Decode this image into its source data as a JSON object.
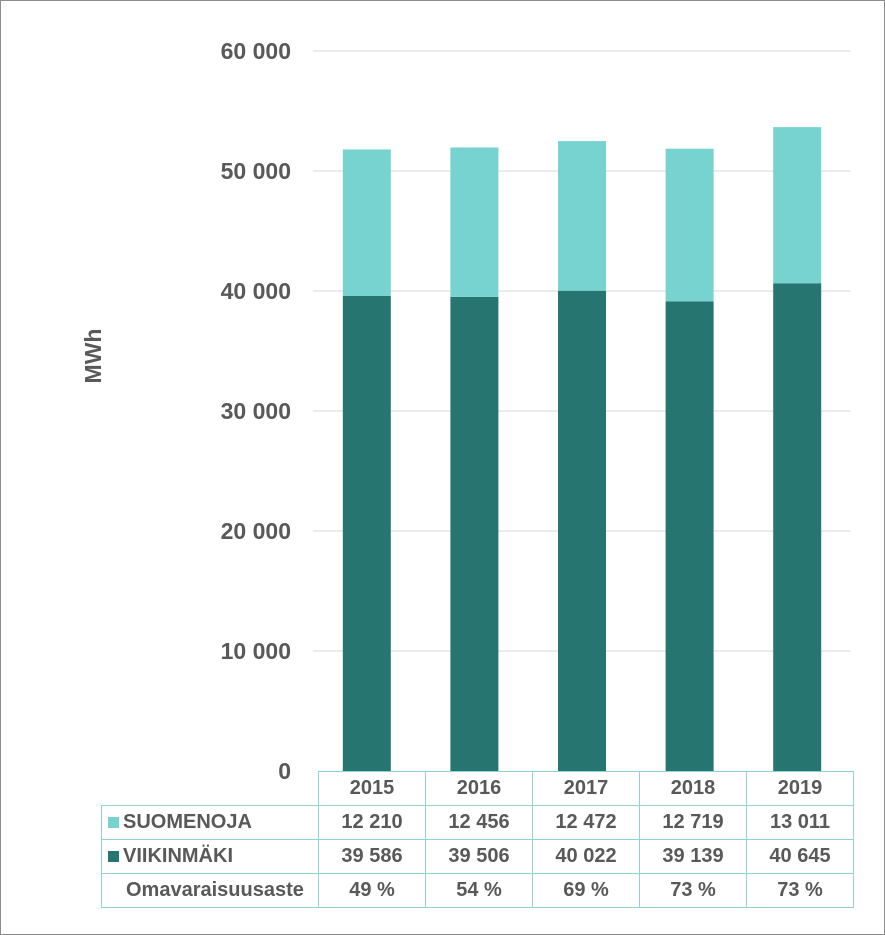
{
  "chart_data": {
    "type": "bar",
    "stacked": true,
    "ylabel": "MWh",
    "ylim": [
      0,
      60000
    ],
    "yticks": [
      "0",
      "10 000",
      "20 000",
      "30 000",
      "40 000",
      "50 000",
      "60 000"
    ],
    "categories": [
      "2015",
      "2016",
      "2017",
      "2018",
      "2019"
    ],
    "series": [
      {
        "name": "SUOMENOJA",
        "color": "#76d3cf",
        "values": [
          12210,
          12456,
          12472,
          12719,
          13011
        ],
        "labels": [
          "12 210",
          "12 456",
          "12 472",
          "12 719",
          "13 011"
        ]
      },
      {
        "name": "VIIKINMÄKI",
        "color": "#267571",
        "values": [
          39586,
          39506,
          40022,
          39139,
          40645
        ],
        "labels": [
          "39 586",
          "39 506",
          "40 022",
          "39 139",
          "40 645"
        ]
      }
    ],
    "extra_row": {
      "name": "Omavaraisuusaste",
      "labels": [
        "49 %",
        "54 %",
        "69 %",
        "73 %",
        "73 %"
      ]
    },
    "grid": true
  }
}
